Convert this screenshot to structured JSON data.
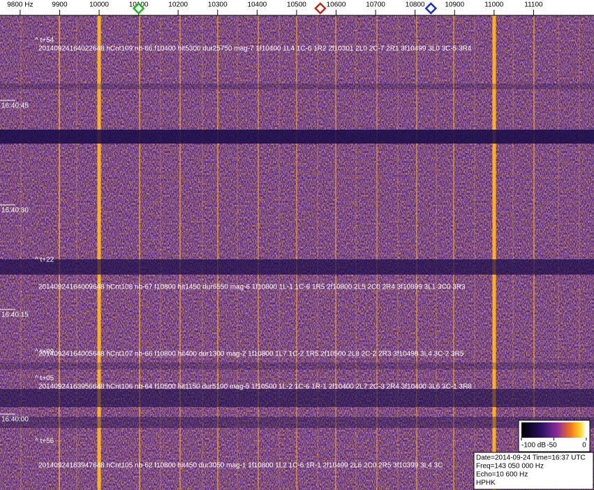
{
  "frequency_axis": {
    "range": [
      9749,
      11253
    ],
    "ticks": [
      {
        "value": 9800,
        "label": "9800 Hz"
      },
      9900,
      10000,
      10100,
      10200,
      10300,
      10400,
      10500,
      10600,
      10700,
      10800,
      10900,
      11000,
      11100
    ]
  },
  "markers": [
    {
      "frequency": 10100,
      "color": "#18b818"
    },
    {
      "frequency": 10560,
      "color": "#c02818"
    },
    {
      "frequency": 10840,
      "color": "#1830c0"
    }
  ],
  "time_labels": [
    "16:40:45",
    "16:40:30",
    "16:40:15",
    "16:40:00"
  ],
  "events": [
    {
      "offset": "^ t+54",
      "detail": "20140924164022648 hCnt109 nb-66 f10400 hit5300 dur25750 mag-7 1f10400 1L4 1C-6 1R2 2f10301 2L0 2C-7 2R1 3f10499 3L0 3C-5 3R4"
    },
    {
      "offset": "^ t+22",
      "detail": "20140924164009648 hCnt108 nb-67 f10800 hit1450 dur6550 mag-6 1f10800 1L-1 1C-6 1R5 2f10800 2L5 2C0 2R4 3f10899 3L1 3C0 3R3"
    },
    {
      "offset": "^ t+09",
      "detail": "20140924164005648 hCnt107 nb-66 f10800 hit400 dur1300 mag-2 1f10800 1L7 1C-2 1R5 2f10500 2L8 2C-2 2R3 3f10498 3L4 3C-2 3R5"
    },
    {
      "offset": "^ t+05",
      "detail": "20140924163956648 hCnt106 nb-64 f10500 hit1150 dur5100 mag-5 1f10500 1L-2 1C-6 1R-1 2f10400 2L7 2C-3 2R4 3f10400 3L6 3C-1 3R8"
    },
    {
      "offset": "^ t+56",
      "detail": "20140924163947648 hCnt105 nb-62 f10800 hit450 dur3050 mag-1 1f10800 1L2 1C-6 1R-1 2f10499 2L6 2C0 2R5 3f10399 3L4 3C"
    }
  ],
  "colorbar": {
    "range": [
      -100,
      0
    ],
    "ticks": [
      {
        "value": -100,
        "label": "-100 dB"
      },
      -50,
      0
    ]
  },
  "info": [
    "Date=2014-09-24 Time=16:37 UTC",
    "Freq=143 050 000 Hz",
    "Echo=10 600 Hz",
    "HPHK"
  ]
}
